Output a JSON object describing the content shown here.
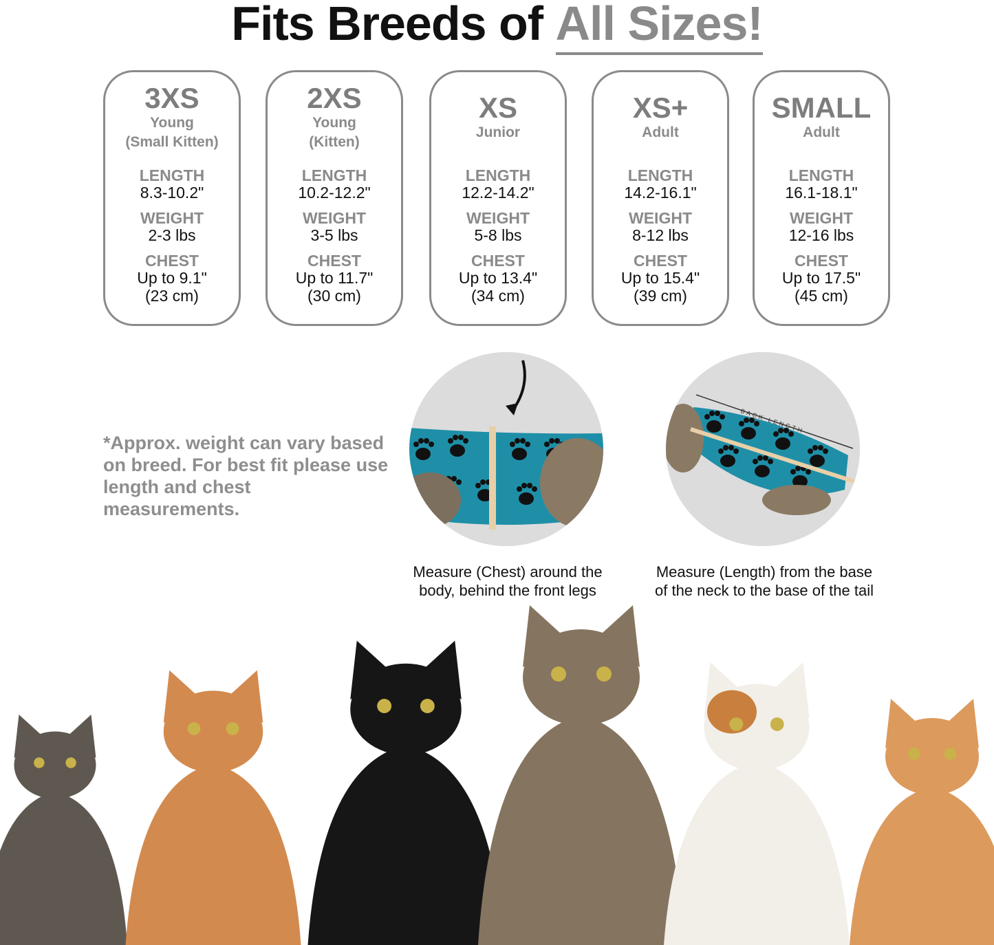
{
  "title": {
    "main": "Fits Breeds of",
    "accent": "All Sizes!"
  },
  "cards": [
    {
      "size": "3XS",
      "sub": [
        "Young",
        "(Small Kitten)"
      ],
      "length": "8.3-10.2\"",
      "weight": "2-3 lbs",
      "chest": "Up to 9.1\"",
      "chest_cm": "(23 cm)"
    },
    {
      "size": "2XS",
      "sub": [
        "Young",
        "(Kitten)"
      ],
      "length": "10.2-12.2\"",
      "weight": "3-5 lbs",
      "chest": "Up to 11.7\"",
      "chest_cm": "(30 cm)"
    },
    {
      "size": "XS",
      "sub": [
        "Junior"
      ],
      "length": "12.2-14.2\"",
      "weight": "5-8 lbs",
      "chest": "Up to 13.4\"",
      "chest_cm": "(34 cm)"
    },
    {
      "size": "XS+",
      "sub": [
        "Adult"
      ],
      "length": "14.2-16.1\"",
      "weight": "8-12 lbs",
      "chest": "Up to 15.4\"",
      "chest_cm": "(39 cm)"
    },
    {
      "size": "SMALL",
      "sub": [
        "Adult"
      ],
      "length": "16.1-18.1\"",
      "weight": "12-16 lbs",
      "chest": "Up to 17.5\"",
      "chest_cm": "(45 cm)"
    }
  ],
  "labels": {
    "length": "LENGTH",
    "weight": "WEIGHT",
    "chest": "CHEST"
  },
  "note": "*Approx. weight can vary based on breed. For best fit please use length and chest measurements.",
  "measure": {
    "chest_caption": [
      "Measure (Chest) around the",
      "body, behind the front legs"
    ],
    "length_caption": [
      "Measure (Length) from the base",
      "of the neck to the base of the tail"
    ],
    "back_length_label": "BACK LENGTH"
  },
  "colors": {
    "accent_gray": "#8a8a8a",
    "suit_teal": "#1f8fa8",
    "cats": [
      "#5f5850",
      "#d38a4f",
      "#161616",
      "#85745f",
      "#f2efe9",
      "#dc9a5c"
    ]
  }
}
